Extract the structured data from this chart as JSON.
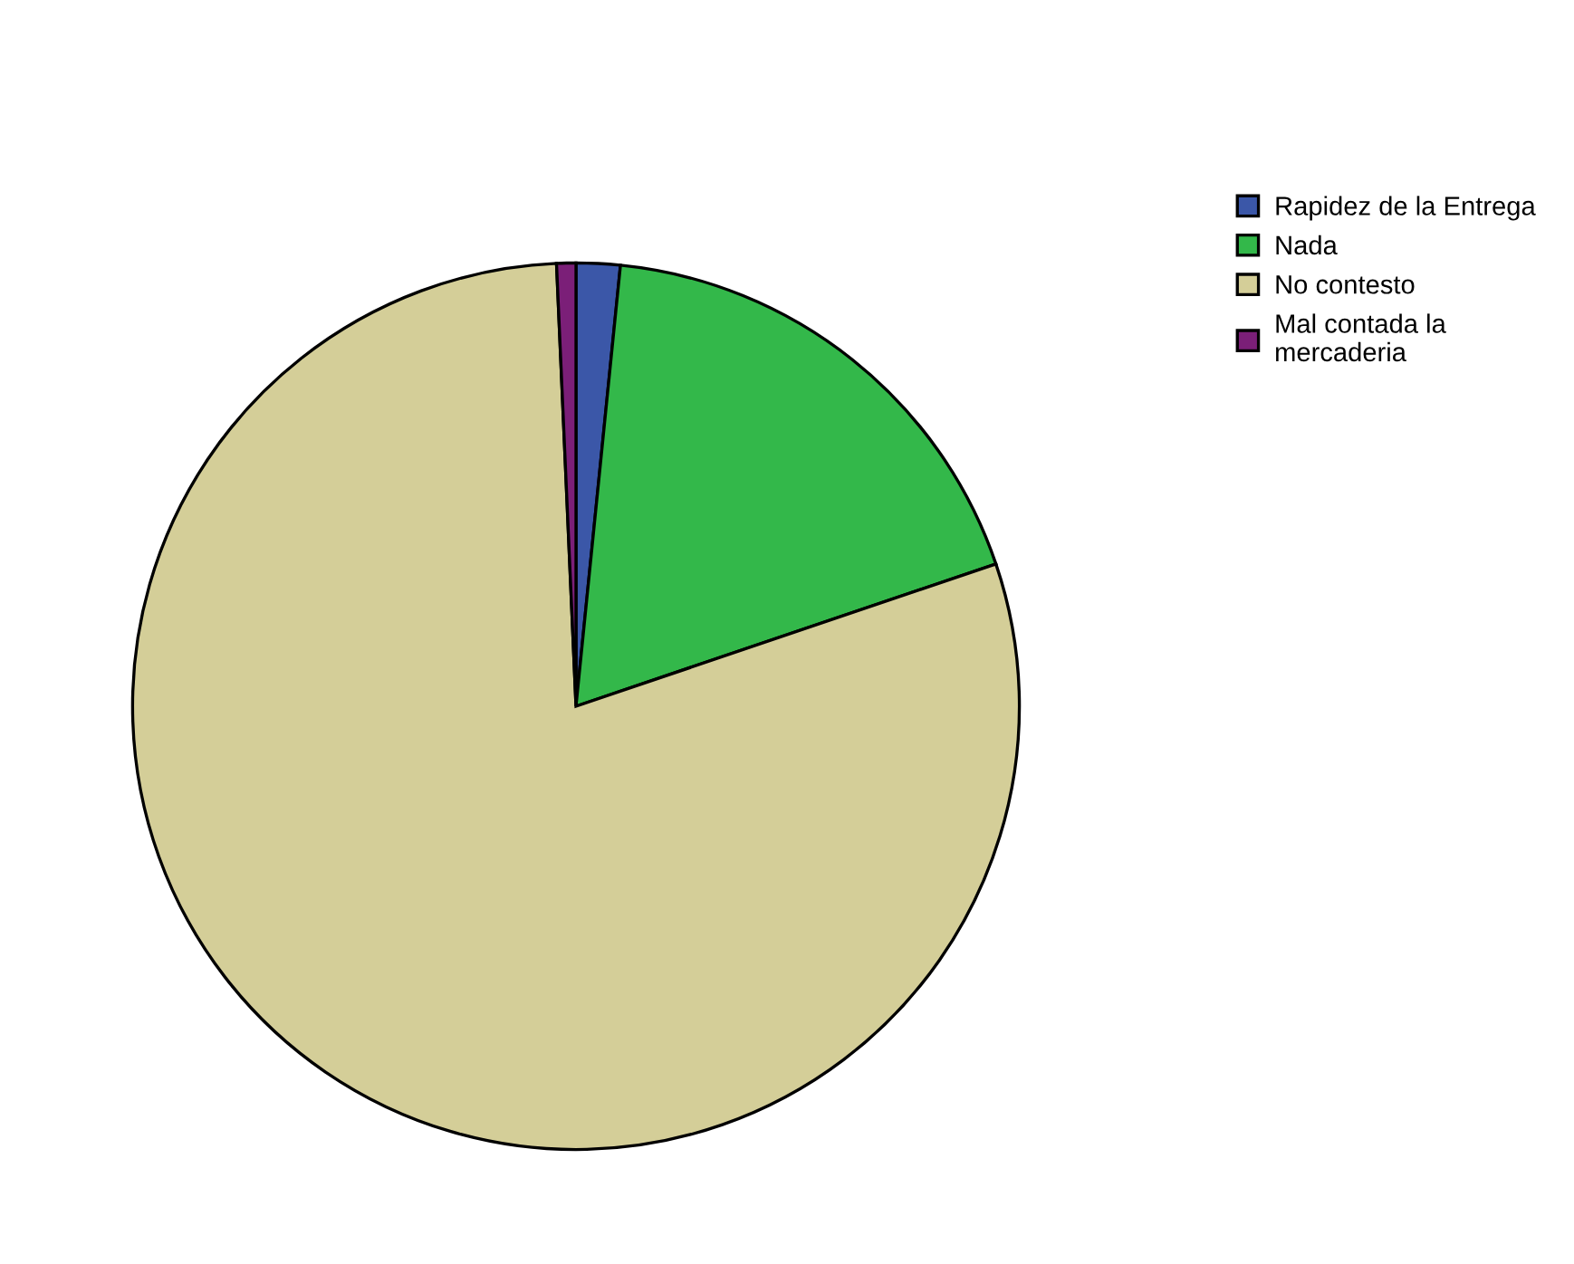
{
  "chart_data": {
    "type": "pie",
    "categories": [
      "Rapidez de la Entrega",
      "Nada",
      "No contesto",
      "Mal contada la\nmercaderia"
    ],
    "values": [
      1.6,
      18.2,
      79.5,
      0.7
    ],
    "colors": [
      "#3b57a8",
      "#33b84a",
      "#d4ce98",
      "#7b1f78"
    ],
    "legend": "top right"
  }
}
